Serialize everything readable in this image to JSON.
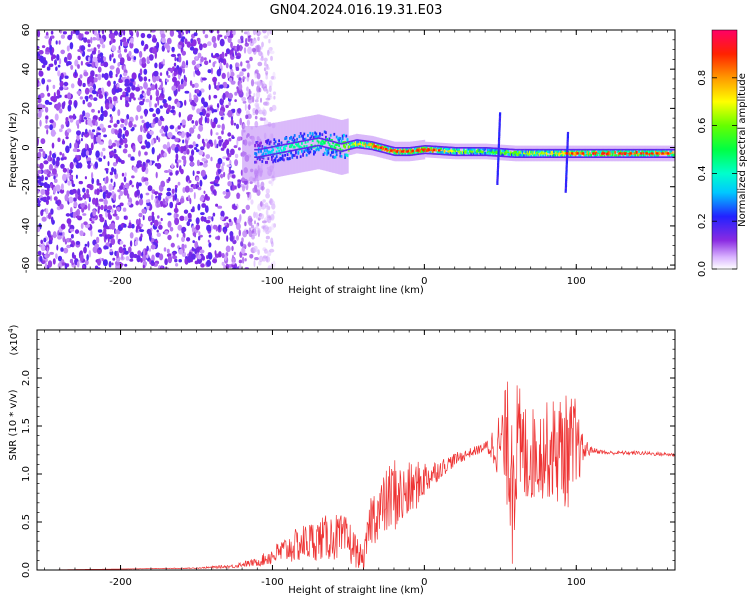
{
  "figure_title": "GN04.2024.016.19.31.E03",
  "chart_data": [
    {
      "type": "heatmap",
      "xlabel": "Height of straight line (km)",
      "ylabel": "Frequency (Hz)",
      "xlim": [
        -255,
        165
      ],
      "ylim": [
        -62,
        60
      ],
      "xticks": [
        -200,
        -100,
        0,
        100
      ],
      "yticks": [
        60,
        40,
        20,
        0,
        -20,
        -40,
        -60
      ],
      "colorbar": {
        "label": "Normalized spectral amplitude",
        "range": [
          0,
          1
        ],
        "ticks": [
          0.0,
          0.2,
          0.4,
          0.6,
          0.8
        ],
        "tick_labels": [
          "0.0",
          "0.2",
          "0.4",
          "0.6",
          "0.8"
        ],
        "colormap": "rainbow (white-purple-blue-cyan-green-yellow-orange-red-magenta)"
      },
      "ridge": {
        "description": "narrow high-amplitude band near 0 Hz from about -110 km to the right edge",
        "x": [
          -110,
          -90,
          -70,
          -55,
          -45,
          -35,
          -20,
          -10,
          0,
          20,
          40,
          60,
          80,
          100,
          120,
          140,
          165
        ],
        "freq": [
          -3,
          0,
          3,
          0,
          2,
          1,
          -2,
          -2,
          -1,
          -2,
          -2,
          -3,
          -3,
          -3,
          -3,
          -3,
          -3
        ],
        "amplitude": [
          0.3,
          0.45,
          0.5,
          0.55,
          0.8,
          0.85,
          0.9,
          0.9,
          0.95,
          0.7,
          0.6,
          0.65,
          0.75,
          0.85,
          0.95,
          0.9,
          0.85
        ]
      },
      "noise_region_x": [
        -255,
        -115
      ]
    },
    {
      "type": "line",
      "xlabel": "Height of straight line (km)",
      "ylabel": "SNR (10 * v/v)",
      "scale_label": "(x10",
      "scale_exp": "4",
      "xlim": [
        -255,
        165
      ],
      "ylim": [
        0,
        2.5
      ],
      "xticks": [
        -200,
        -100,
        0,
        100
      ],
      "yticks": [
        0.0,
        0.5,
        1.0,
        1.5,
        2.0
      ],
      "ytick_labels": [
        "0.0",
        "0.5",
        "1.0",
        "1.5",
        "2.0"
      ],
      "series": [
        {
          "color": "#ee3333",
          "x": [
            -255,
            -200,
            -150,
            -125,
            -120,
            -110,
            -100,
            -90,
            -80,
            -70,
            -60,
            -50,
            -40,
            -35,
            -30,
            -25,
            -20,
            -15,
            -10,
            -5,
            0,
            10,
            20,
            30,
            40,
            48,
            55,
            58,
            60,
            65,
            70,
            80,
            90,
            100,
            103,
            110,
            120,
            140,
            165
          ],
          "y": [
            0.0,
            0.01,
            0.02,
            0.04,
            0.06,
            0.08,
            0.15,
            0.22,
            0.28,
            0.32,
            0.35,
            0.3,
            0.1,
            0.55,
            0.6,
            0.7,
            0.8,
            0.75,
            0.82,
            0.88,
            0.95,
            1.05,
            1.15,
            1.22,
            1.28,
            1.3,
            1.3,
            1.2,
            1.25,
            1.2,
            1.2,
            1.25,
            1.25,
            1.22,
            1.25,
            1.25,
            1.22,
            1.22,
            1.2
          ],
          "noise_amplitude": [
            0.0,
            0.0,
            0.005,
            0.02,
            0.03,
            0.04,
            0.1,
            0.15,
            0.2,
            0.22,
            0.25,
            0.25,
            0.1,
            0.3,
            0.3,
            0.35,
            0.4,
            0.35,
            0.3,
            0.25,
            0.2,
            0.1,
            0.07,
            0.05,
            0.05,
            0.3,
            0.7,
            1.2,
            0.8,
            0.6,
            0.5,
            0.5,
            0.6,
            0.6,
            0.2,
            0.03,
            0.02,
            0.02,
            0.02
          ]
        }
      ]
    }
  ]
}
